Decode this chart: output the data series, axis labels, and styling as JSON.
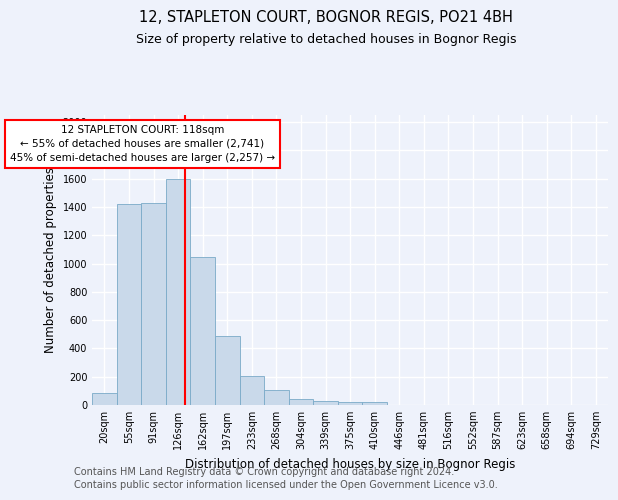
{
  "title": "12, STAPLETON COURT, BOGNOR REGIS, PO21 4BH",
  "subtitle": "Size of property relative to detached houses in Bognor Regis",
  "xlabel": "Distribution of detached houses by size in Bognor Regis",
  "ylabel": "Number of detached properties",
  "footer_line1": "Contains HM Land Registry data © Crown copyright and database right 2024.",
  "footer_line2": "Contains public sector information licensed under the Open Government Licence v3.0.",
  "bin_labels": [
    "20sqm",
    "55sqm",
    "91sqm",
    "126sqm",
    "162sqm",
    "197sqm",
    "233sqm",
    "268sqm",
    "304sqm",
    "339sqm",
    "375sqm",
    "410sqm",
    "446sqm",
    "481sqm",
    "516sqm",
    "552sqm",
    "587sqm",
    "623sqm",
    "658sqm",
    "694sqm",
    "729sqm"
  ],
  "bar_values": [
    82,
    1420,
    1430,
    1600,
    1045,
    490,
    205,
    105,
    42,
    28,
    22,
    18,
    0,
    0,
    0,
    0,
    0,
    0,
    0,
    0,
    0
  ],
  "bar_color": "#c9d9ea",
  "bar_edge_color": "#7aaac8",
  "property_line_x": 3.27,
  "annotation_text": "12 STAPLETON COURT: 118sqm\n← 55% of detached houses are smaller (2,741)\n45% of semi-detached houses are larger (2,257) →",
  "annotation_box_color": "white",
  "annotation_box_edge_color": "red",
  "vline_color": "red",
  "ylim": [
    0,
    2050
  ],
  "yticks": [
    0,
    200,
    400,
    600,
    800,
    1000,
    1200,
    1400,
    1600,
    1800,
    2000
  ],
  "background_color": "#eef2fb",
  "grid_color": "white",
  "title_fontsize": 10.5,
  "subtitle_fontsize": 9,
  "ylabel_fontsize": 8.5,
  "xlabel_fontsize": 8.5,
  "tick_fontsize": 7,
  "annotation_fontsize": 7.5,
  "footer_fontsize": 7
}
